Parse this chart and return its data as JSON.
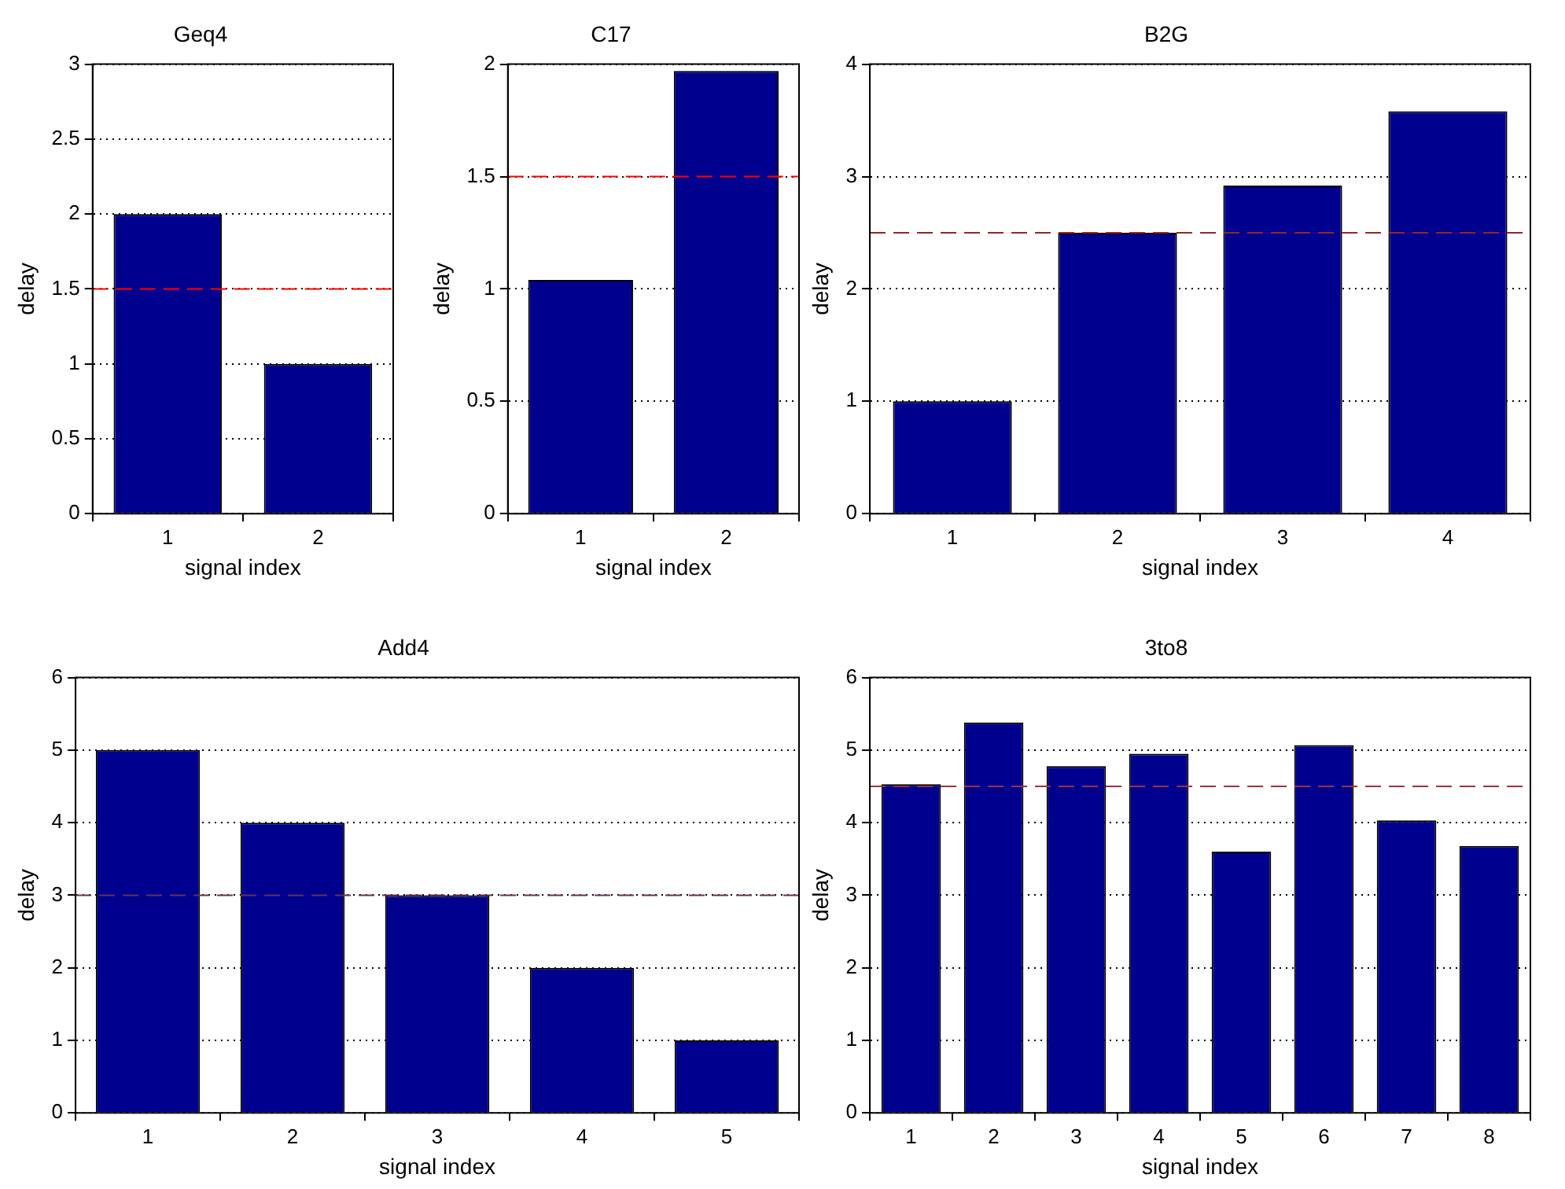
{
  "chart_data": [
    {
      "type": "bar",
      "title": "Geq4",
      "xlabel": "signal index",
      "ylabel": "delay",
      "categories": [
        "1",
        "2"
      ],
      "values": [
        2,
        1
      ],
      "color": "#00008f",
      "ylim": [
        0,
        3
      ],
      "yticks": [
        0,
        0.5,
        1,
        1.5,
        2,
        2.5,
        3
      ],
      "grid": "y",
      "legend": false,
      "ref_lines": [
        {
          "axis": "y",
          "value": 1.5,
          "color": "#ff0000",
          "line_style": "dashed"
        }
      ]
    },
    {
      "type": "bar",
      "title": "C17",
      "xlabel": "signal index",
      "ylabel": "delay",
      "categories": [
        "1",
        "2"
      ],
      "values": [
        1.04,
        1.97
      ],
      "color": "#00008f",
      "ylim": [
        0,
        2
      ],
      "yticks": [
        0,
        0.5,
        1,
        1.5,
        2
      ],
      "grid": "y",
      "legend": false,
      "ref_lines": [
        {
          "axis": "y",
          "value": 1.5,
          "color": "#ff0000",
          "line_style": "dashed"
        }
      ]
    },
    {
      "type": "bar",
      "title": "B2G",
      "xlabel": "signal index",
      "ylabel": "delay",
      "categories": [
        "1",
        "2",
        "3",
        "4"
      ],
      "values": [
        1,
        2.5,
        2.92,
        3.58
      ],
      "color": "#00008f",
      "ylim": [
        0,
        4
      ],
      "yticks": [
        0,
        1,
        2,
        3,
        4
      ],
      "grid": "y",
      "legend": false,
      "ref_lines": [
        {
          "axis": "y",
          "value": 2.5,
          "color": "#8b2a2a",
          "line_style": "dashed"
        }
      ]
    },
    {
      "type": "bar",
      "title": "Add4",
      "xlabel": "signal index",
      "ylabel": "delay",
      "categories": [
        "1",
        "2",
        "3",
        "4",
        "5"
      ],
      "values": [
        5,
        4,
        3,
        2,
        1
      ],
      "color": "#00008f",
      "ylim": [
        0,
        6
      ],
      "yticks": [
        0,
        1,
        2,
        3,
        4,
        5,
        6
      ],
      "grid": "y",
      "legend": false,
      "ref_lines": [
        {
          "axis": "y",
          "value": 3,
          "color": "#6a3050",
          "line_style": "dashed"
        }
      ]
    },
    {
      "type": "bar",
      "title": "3to8",
      "xlabel": "signal index",
      "ylabel": "delay",
      "categories": [
        "1",
        "2",
        "3",
        "4",
        "5",
        "6",
        "7",
        "8"
      ],
      "values": [
        4.53,
        5.38,
        4.78,
        4.95,
        3.6,
        5.07,
        4.03,
        3.68
      ],
      "color": "#00008f",
      "ylim": [
        0,
        6
      ],
      "yticks": [
        0,
        1,
        2,
        3,
        4,
        5,
        6
      ],
      "grid": "y",
      "legend": false,
      "ref_lines": [
        {
          "axis": "y",
          "value": 4.5,
          "color": "#a03040",
          "line_style": "dashed"
        }
      ]
    }
  ]
}
